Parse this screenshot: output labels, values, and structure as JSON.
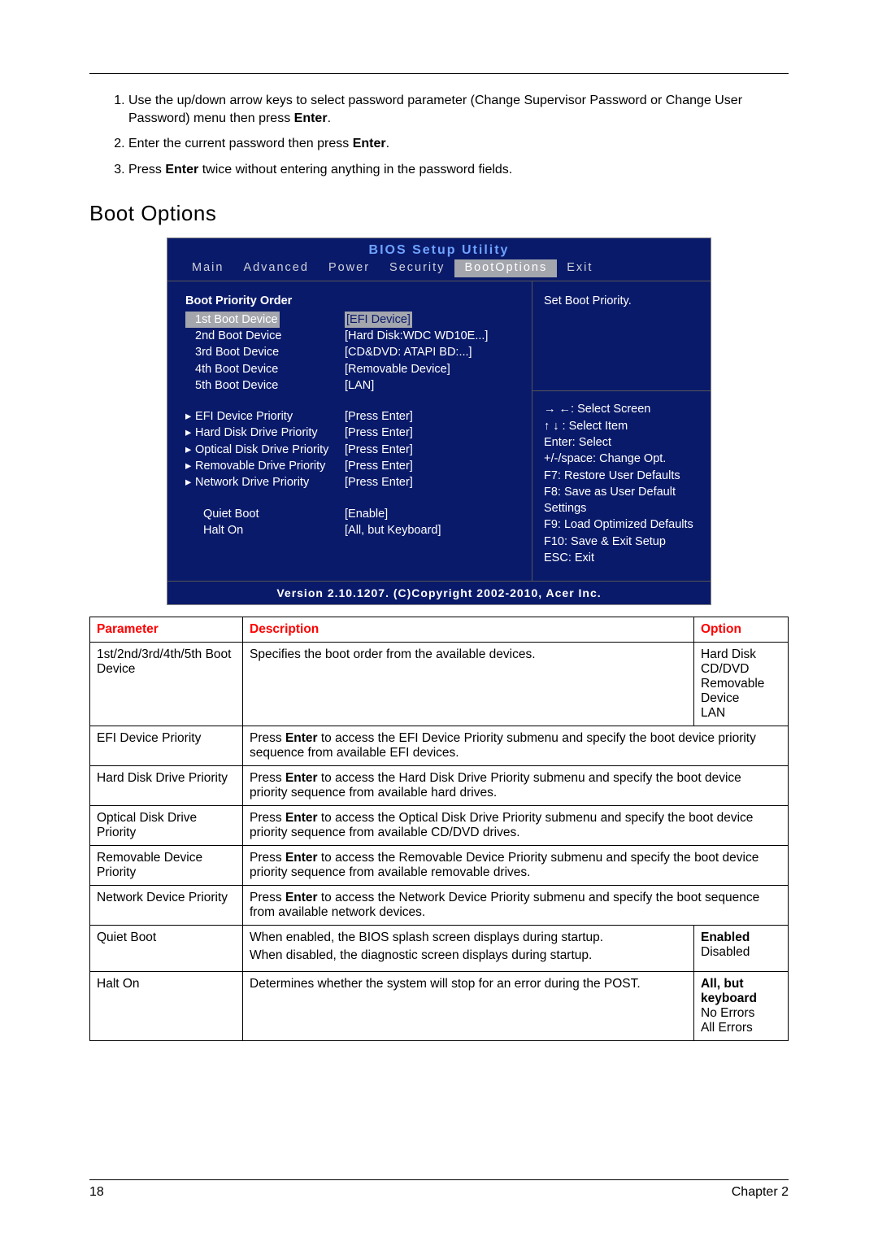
{
  "steps": [
    {
      "prefix": "Use the up/down arrow keys to select password parameter (Change Supervisor Password or Change User Password) menu then press ",
      "bold": "Enter",
      "suffix": "."
    },
    {
      "prefix": "Enter the current password then press ",
      "bold": "Enter",
      "suffix": "."
    },
    {
      "prefix": "Press ",
      "bold": "Enter",
      "suffix": " twice without entering anything in the password fields."
    }
  ],
  "heading": "Boot Options",
  "bios": {
    "title": "BIOS  Setup  Utility",
    "tabs": [
      "Main",
      "Advanced",
      "Power",
      "Security",
      "BootOptions",
      "Exit"
    ],
    "selected_tab_index": 4,
    "section_head": "Boot  Priority  Order",
    "boot_rows": [
      {
        "label": "1st  Boot  Device",
        "value": "[EFI  Device]",
        "selected": true
      },
      {
        "label": "2nd Boot  Device",
        "value": "[Hard  Disk:WDC  WD10E...]",
        "selected": false
      },
      {
        "label": "3rd  Boot  Device",
        "value": "[CD&DVD:  ATAPI     BD:...]",
        "selected": false
      },
      {
        "label": "4th  Boot  Device",
        "value": "[Removable  Device]",
        "selected": false
      },
      {
        "label": "5th  Boot  Device",
        "value": "[LAN]",
        "selected": false
      }
    ],
    "priority_rows": [
      {
        "label": "EFI  Device  Priority",
        "value": "[Press  Enter]"
      },
      {
        "label": "Hard  Disk  Drive  Priority",
        "value": "[Press  Enter]"
      },
      {
        "label": "Optical  Disk  Drive  Priority",
        "value": "[Press  Enter]"
      },
      {
        "label": "Removable  Drive  Priority",
        "value": "[Press  Enter]"
      },
      {
        "label": "Network  Drive  Priority",
        "value": "[Press  Enter]"
      }
    ],
    "misc_rows": [
      {
        "label": "Quiet  Boot",
        "value": "[Enable]"
      },
      {
        "label": "Halt  On",
        "value": "[All,  but  Keyboard]"
      }
    ],
    "help_top": "Set  Boot  Priority.",
    "nav_lines": [
      "→ ←:  Select  Screen",
      "↑ ↓ :  Select  Item",
      "Enter:  Select",
      "+/-/space:  Change  Opt.",
      "F7:  Restore  User  Defaults",
      "F8:  Save  as  User  Default Settings",
      "F9:  Load  Optimized  Defaults",
      "F10:  Save  &  Exit  Setup",
      "ESC:  Exit"
    ],
    "footer": "Version  2.10.1207.   (C)Copyright  2002-2010,  Acer  Inc.",
    "colors": {
      "background": "#0a1a6a",
      "accent": "#6fa3ff",
      "dim": "#bfc1c7",
      "highlight_bg": "#a3a6ad"
    }
  },
  "table": {
    "head": {
      "param": "Parameter",
      "desc": "Description",
      "opt": "Option"
    },
    "rows": [
      {
        "param": "1st/2nd/3rd/4th/5th Boot Device",
        "desc_plain": "Specifies the boot order from the available devices.",
        "options": [
          "Hard Disk",
          "CD/DVD",
          "Removable Device",
          "LAN"
        ],
        "opt_bold_idx": [],
        "span": false
      },
      {
        "param": "EFI Device Priority",
        "desc_pre": "Press ",
        "desc_bold": "Enter",
        "desc_post": " to access the EFI Device Priority submenu and specify the boot device priority sequence from available EFI devices.",
        "span": true
      },
      {
        "param": "Hard Disk Drive Priority",
        "desc_pre": "Press ",
        "desc_bold": "Enter",
        "desc_post": " to access the Hard Disk Drive Priority submenu and specify the boot device priority sequence from available hard drives.",
        "span": true
      },
      {
        "param": "Optical Disk Drive Priority",
        "desc_pre": "Press ",
        "desc_bold": "Enter",
        "desc_post": " to access the Optical Disk Drive Priority submenu and specify the boot device priority sequence from available CD/DVD drives.",
        "span": true
      },
      {
        "param": "Removable Device Priority",
        "desc_pre": "Press ",
        "desc_bold": "Enter",
        "desc_post": " to access the Removable Device Priority submenu and specify the boot device priority sequence from available removable drives.",
        "span": true
      },
      {
        "param": "Network Device Priority",
        "desc_pre": "Press ",
        "desc_bold": "Enter",
        "desc_post": " to access the Network Device Priority submenu and specify the boot sequence from available network devices.",
        "span": true
      },
      {
        "param": "Quiet Boot",
        "desc_lines": [
          "When enabled, the BIOS splash screen displays during startup.",
          "When disabled, the diagnostic screen displays during startup."
        ],
        "options": [
          "Enabled",
          "Disabled"
        ],
        "opt_bold_idx": [
          0
        ],
        "span": false
      },
      {
        "param": "Halt On",
        "desc_plain": "Determines whether the system will stop for an error during the POST.",
        "options": [
          "All, but keyboard",
          "No Errors",
          "All Errors"
        ],
        "opt_bold_idx": [
          0
        ],
        "span": false
      }
    ]
  },
  "footer": {
    "page": "18",
    "chapter": "Chapter 2"
  }
}
